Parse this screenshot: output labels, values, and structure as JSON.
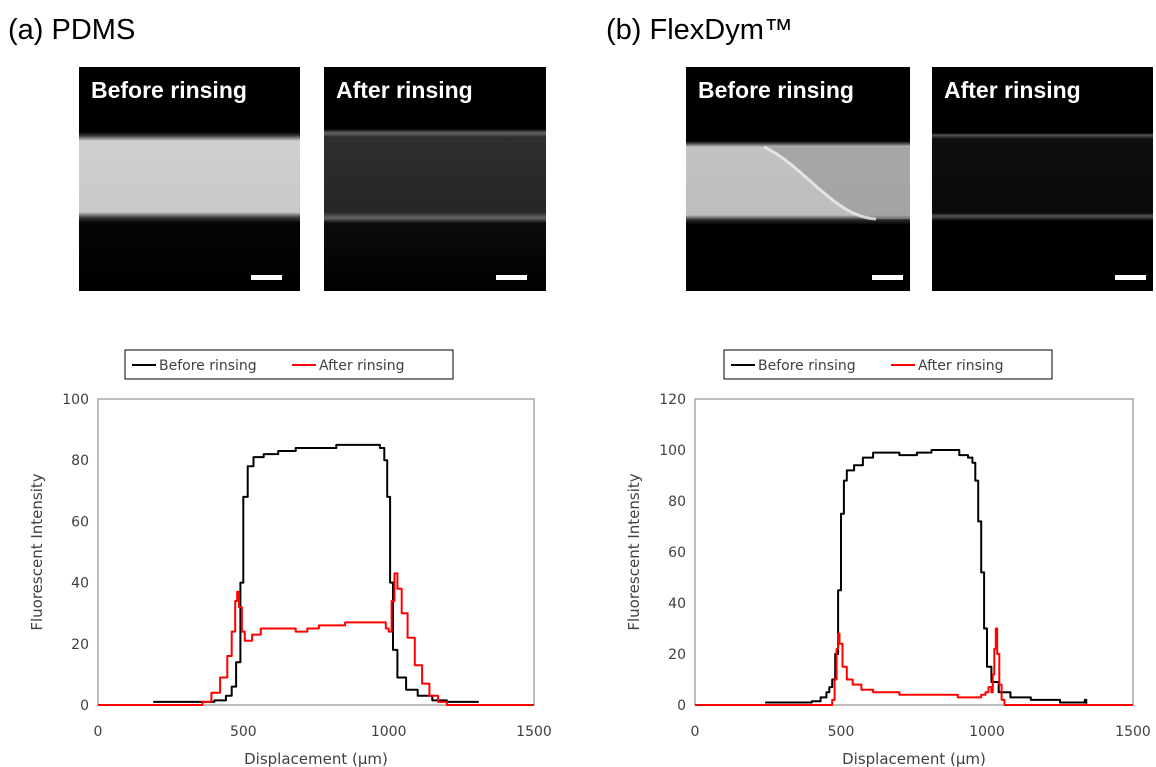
{
  "panels": [
    {
      "title": "(a) PDMS",
      "images": [
        {
          "label": "Before rinsing",
          "scale_bar": true
        },
        {
          "label": "After rinsing",
          "scale_bar": true
        }
      ]
    },
    {
      "title": "(b) FlexDym™",
      "images": [
        {
          "label": "Before rinsing",
          "scale_bar": true
        },
        {
          "label": "After rinsing",
          "scale_bar": true
        }
      ]
    }
  ],
  "colors": {
    "before": "#000000",
    "after": "#ff0000",
    "axis": "#7f7f7f",
    "tick_text": "#404040"
  },
  "chart_data": [
    {
      "type": "line",
      "xlabel": "Displacement (µm)",
      "ylabel": "Fluorescent Intensity",
      "xlim": [
        0,
        1500
      ],
      "ylim": [
        0,
        100
      ],
      "xticks": [
        0,
        500,
        1000,
        1500
      ],
      "yticks": [
        0,
        20,
        40,
        60,
        80,
        100
      ],
      "grid": false,
      "legend_position": "top",
      "series": [
        {
          "name": "Before rinsing",
          "color": "#000000",
          "points": [
            [
              190,
              1
            ],
            [
              320,
              1
            ],
            [
              400,
              1.5
            ],
            [
              440,
              3
            ],
            [
              460,
              6
            ],
            [
              475,
              14
            ],
            [
              490,
              40
            ],
            [
              500,
              68
            ],
            [
              515,
              78
            ],
            [
              535,
              81
            ],
            [
              570,
              82
            ],
            [
              620,
              83
            ],
            [
              680,
              84
            ],
            [
              750,
              84
            ],
            [
              820,
              85
            ],
            [
              880,
              85
            ],
            [
              940,
              85
            ],
            [
              970,
              84
            ],
            [
              985,
              80
            ],
            [
              995,
              68
            ],
            [
              1005,
              40
            ],
            [
              1015,
              18
            ],
            [
              1030,
              9
            ],
            [
              1060,
              5
            ],
            [
              1100,
              3
            ],
            [
              1150,
              1.5
            ],
            [
              1200,
              1
            ],
            [
              1310,
              1
            ]
          ]
        },
        {
          "name": "After rinsing",
          "color": "#ff0000",
          "points": [
            [
              0,
              0
            ],
            [
              340,
              0
            ],
            [
              360,
              1
            ],
            [
              390,
              4
            ],
            [
              420,
              9
            ],
            [
              445,
              16
            ],
            [
              460,
              24
            ],
            [
              472,
              34
            ],
            [
              479,
              37
            ],
            [
              485,
              32
            ],
            [
              495,
              24
            ],
            [
              505,
              21
            ],
            [
              530,
              23
            ],
            [
              560,
              25
            ],
            [
              620,
              25
            ],
            [
              680,
              24
            ],
            [
              720,
              25
            ],
            [
              760,
              26
            ],
            [
              800,
              26
            ],
            [
              850,
              27
            ],
            [
              900,
              27
            ],
            [
              950,
              27
            ],
            [
              975,
              27
            ],
            [
              990,
              25
            ],
            [
              1000,
              24
            ],
            [
              1010,
              34
            ],
            [
              1020,
              43
            ],
            [
              1030,
              38
            ],
            [
              1045,
              30
            ],
            [
              1065,
              22
            ],
            [
              1090,
              13
            ],
            [
              1115,
              7
            ],
            [
              1140,
              3
            ],
            [
              1170,
              1
            ],
            [
              1200,
              0
            ],
            [
              1500,
              0
            ]
          ]
        }
      ]
    },
    {
      "type": "line",
      "xlabel": "Displacement (µm)",
      "ylabel": "Fluorescent Intensity",
      "xlim": [
        0,
        1500
      ],
      "ylim": [
        0,
        120
      ],
      "xticks": [
        0,
        500,
        1000,
        1500
      ],
      "yticks": [
        0,
        20,
        40,
        60,
        80,
        100,
        120
      ],
      "grid": false,
      "legend_position": "top",
      "series": [
        {
          "name": "Before rinsing",
          "color": "#000000",
          "points": [
            [
              240,
              1
            ],
            [
              400,
              1.5
            ],
            [
              430,
              3
            ],
            [
              450,
              5
            ],
            [
              460,
              7
            ],
            [
              470,
              10
            ],
            [
              480,
              20
            ],
            [
              490,
              45
            ],
            [
              500,
              75
            ],
            [
              510,
              88
            ],
            [
              520,
              92
            ],
            [
              545,
              94
            ],
            [
              575,
              97
            ],
            [
              610,
              99
            ],
            [
              660,
              99
            ],
            [
              700,
              98
            ],
            [
              760,
              99
            ],
            [
              810,
              100
            ],
            [
              860,
              100
            ],
            [
              905,
              98
            ],
            [
              935,
              97
            ],
            [
              950,
              95
            ],
            [
              960,
              88
            ],
            [
              970,
              72
            ],
            [
              980,
              52
            ],
            [
              990,
              30
            ],
            [
              1000,
              15
            ],
            [
              1015,
              9
            ],
            [
              1040,
              5
            ],
            [
              1080,
              3
            ],
            [
              1150,
              2
            ],
            [
              1250,
              1
            ],
            [
              1330,
              1
            ],
            [
              1335,
              2
            ],
            [
              1340,
              0.5
            ]
          ]
        },
        {
          "name": "After rinsing",
          "color": "#ff0000",
          "points": [
            [
              0,
              0
            ],
            [
              440,
              0
            ],
            [
              460,
              0
            ],
            [
              470,
              2
            ],
            [
              478,
              10
            ],
            [
              485,
              22
            ],
            [
              490,
              28
            ],
            [
              495,
              24
            ],
            [
              505,
              15
            ],
            [
              520,
              10
            ],
            [
              540,
              8
            ],
            [
              570,
              6
            ],
            [
              610,
              5
            ],
            [
              650,
              5
            ],
            [
              700,
              4
            ],
            [
              800,
              4
            ],
            [
              900,
              3
            ],
            [
              950,
              3
            ],
            [
              980,
              4
            ],
            [
              995,
              5
            ],
            [
              1005,
              7
            ],
            [
              1015,
              5
            ],
            [
              1020,
              12
            ],
            [
              1025,
              22
            ],
            [
              1030,
              30
            ],
            [
              1035,
              20
            ],
            [
              1042,
              8
            ],
            [
              1050,
              2
            ],
            [
              1060,
              0
            ],
            [
              1500,
              0
            ]
          ]
        }
      ]
    }
  ]
}
